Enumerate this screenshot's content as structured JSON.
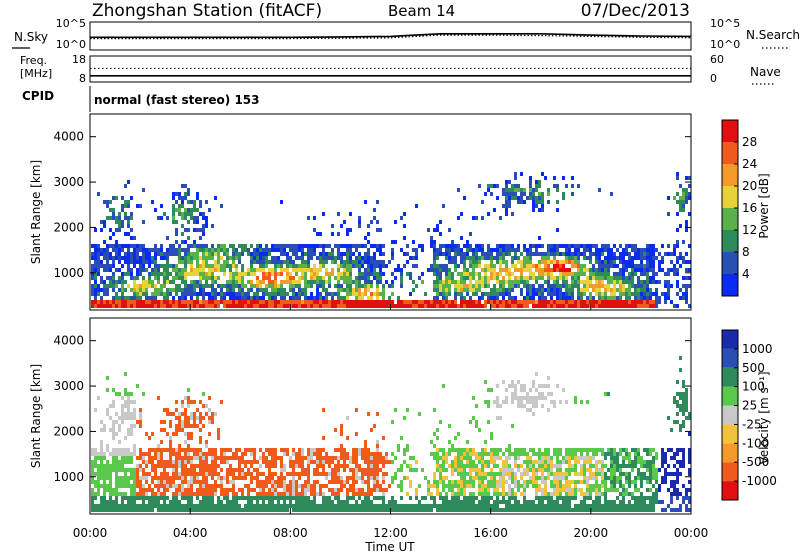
{
  "header": {
    "station": "Zhongshan Station (fitACF)",
    "beam": "Beam 14",
    "date": "07/Dec/2013"
  },
  "colors": {
    "power_scale": [
      "#0a2cf0",
      "#2a4fb4",
      "#2e8a5a",
      "#5ab04a",
      "#e8d23a",
      "#f29a2a",
      "#f05a1a",
      "#e01010"
    ],
    "velocity_scale": [
      "#e01010",
      "#f05a1a",
      "#f59a2a",
      "#f2c23c",
      "#c8c8c8",
      "#5ac84a",
      "#2e8a5a",
      "#2a4fb4",
      "#1a2aa8"
    ]
  },
  "chart_data": [
    {
      "type": "line",
      "panel": "noise",
      "left_label": "N.Sky",
      "right_label": "N.Search",
      "left_ticks": [
        "10^5",
        "10^0"
      ],
      "right_ticks": [
        "10^5",
        "10^0"
      ],
      "ylim_log10": [
        0,
        5
      ],
      "x": [
        "00:00",
        "02:00",
        "04:00",
        "06:00",
        "08:00",
        "10:00",
        "12:00",
        "13:00",
        "14:00",
        "16:00",
        "18:00",
        "20:00",
        "22:00",
        "24:00"
      ],
      "series": [
        {
          "name": "N.Sky",
          "style": "solid",
          "values": [
            2.2,
            2.2,
            2.2,
            2.2,
            2.2,
            2.3,
            2.4,
            2.7,
            3.0,
            3.0,
            3.0,
            2.7,
            2.5,
            2.4
          ]
        },
        {
          "name": "N.Search",
          "style": "dotted",
          "values": [
            1.9,
            1.9,
            1.9,
            1.9,
            1.9,
            2.0,
            2.1,
            2.4,
            2.7,
            2.7,
            2.6,
            2.4,
            2.2,
            2.1
          ]
        }
      ]
    },
    {
      "type": "line",
      "panel": "freq_nave",
      "left_label_lines": [
        "Freq.",
        "[MHz]"
      ],
      "right_label": "Nave",
      "left_ticks": [
        "18",
        "8"
      ],
      "right_ticks": [
        "60",
        "0"
      ],
      "freq_ylim": [
        8,
        18
      ],
      "nave_ylim": [
        0,
        60
      ],
      "x": [
        "00:00",
        "24:00"
      ],
      "series": [
        {
          "name": "Freq.",
          "style": "solid",
          "values": [
            10.0,
            10.0
          ]
        },
        {
          "name": "Nave",
          "style": "dotted",
          "values": [
            33,
            33
          ]
        }
      ]
    },
    {
      "type": "table",
      "panel": "cpid",
      "label": "CPID",
      "text": "normal (fast stereo) 153"
    },
    {
      "type": "heatmap",
      "panel": "power",
      "ylabel": "Slant Range [km]",
      "yticks": [
        "4000",
        "3000",
        "2000",
        "1000"
      ],
      "ylim": [
        180,
        4500
      ],
      "xlim_hours": [
        0,
        24
      ],
      "colorbar_label": "Power [dB]",
      "colorbar_ticks": [
        "28",
        "24",
        "20",
        "16",
        "12",
        "8",
        "4"
      ],
      "clim": [
        0,
        32
      ]
    },
    {
      "type": "heatmap",
      "panel": "velocity",
      "ylabel": "Slant Range [km]",
      "yticks": [
        "4000",
        "3000",
        "2000",
        "1000"
      ],
      "ylim": [
        180,
        4500
      ],
      "xlim_hours": [
        0,
        24
      ],
      "xlabel": "Time UT",
      "xticks": [
        "00:00",
        "04:00",
        "08:00",
        "12:00",
        "16:00",
        "20:00",
        "00:00"
      ],
      "colorbar_label": "Velocity [m s⁻¹]",
      "colorbar_ticks": [
        "1000",
        "500",
        "100",
        "25",
        "-25",
        "-100",
        "-500",
        "-1000"
      ]
    }
  ]
}
